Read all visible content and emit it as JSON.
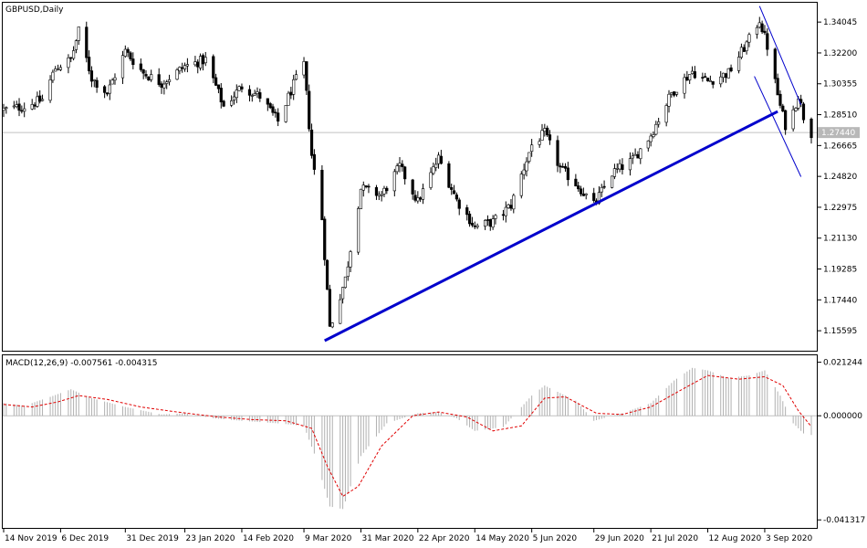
{
  "chart_data": [
    {
      "type": "candlestick",
      "title": "GBPUSD,Daily",
      "current_price_label": "1.27440",
      "current_price": 1.2744,
      "y_ticks": [
        "1.34045",
        "1.32200",
        "1.30355",
        "1.28510",
        "1.26665",
        "1.24820",
        "1.22975",
        "1.21130",
        "1.19285",
        "1.17440",
        "1.15595"
      ],
      "ylim": [
        1.144,
        1.352
      ],
      "x_labels": [
        "14 Nov 2019",
        "6 Dec 2019",
        "31 Dec 2019",
        "23 Jan 2020",
        "14 Feb 2020",
        "9 Mar 2020",
        "31 Mar 2020",
        "22 Apr 2020",
        "14 May 2020",
        "5 Jun 2020",
        "29 Jun 2020",
        "21 Jul 2020",
        "12 Aug 2020",
        "3 Sep 2020"
      ],
      "colors": {
        "candle": "#000000",
        "trend_line": "#0000cc",
        "channel": "#0000cc",
        "price_line": "#c0c0c0"
      },
      "trend_line": {
        "from": [
          "17 Mar 2020",
          1.15
        ],
        "to": [
          "8 Sep 2020",
          1.287
        ]
      },
      "channel_upper": {
        "from": [
          "1 Sep 2020",
          1.35
        ],
        "to": [
          "17 Sep 2020",
          1.291
        ]
      },
      "channel_lower": {
        "from": [
          "30 Aug 2020",
          1.308
        ],
        "to": [
          "17 Sep 2020",
          1.248
        ]
      },
      "series": [
        {
          "name": "GBPUSD",
          "close_path": [
            {
              "date": "14 Nov 2019",
              "close": 1.288
            },
            {
              "date": "22 Nov 2019",
              "close": 1.29
            },
            {
              "date": "29 Nov 2019",
              "close": 1.294
            },
            {
              "date": "4 Dec 2019",
              "close": 1.313
            },
            {
              "date": "10 Dec 2019",
              "close": 1.318
            },
            {
              "date": "13 Dec 2019",
              "close": 1.335
            },
            {
              "date": "18 Dec 2019",
              "close": 1.307
            },
            {
              "date": "24 Dec 2019",
              "close": 1.298
            },
            {
              "date": "31 Dec 2019",
              "close": 1.323
            },
            {
              "date": "7 Jan 2020",
              "close": 1.31
            },
            {
              "date": "14 Jan 2020",
              "close": 1.304
            },
            {
              "date": "23 Jan 2020",
              "close": 1.314
            },
            {
              "date": "31 Jan 2020",
              "close": 1.318
            },
            {
              "date": "7 Feb 2020",
              "close": 1.29
            },
            {
              "date": "14 Feb 2020",
              "close": 1.302
            },
            {
              "date": "21 Feb 2020",
              "close": 1.296
            },
            {
              "date": "28 Feb 2020",
              "close": 1.281
            },
            {
              "date": "5 Mar 2020",
              "close": 1.303
            },
            {
              "date": "9 Mar 2020",
              "close": 1.315
            },
            {
              "date": "12 Mar 2020",
              "close": 1.261
            },
            {
              "date": "16 Mar 2020",
              "close": 1.223
            },
            {
              "date": "19 Mar 2020",
              "close": 1.158
            },
            {
              "date": "20 Mar 2020",
              "close": 1.162
            },
            {
              "date": "25 Mar 2020",
              "close": 1.187
            },
            {
              "date": "31 Mar 2020",
              "close": 1.241
            },
            {
              "date": "8 Apr 2020",
              "close": 1.237
            },
            {
              "date": "15 Apr 2020",
              "close": 1.254
            },
            {
              "date": "22 Apr 2020",
              "close": 1.233
            },
            {
              "date": "30 Apr 2020",
              "close": 1.259
            },
            {
              "date": "7 May 2020",
              "close": 1.234
            },
            {
              "date": "14 May 2020",
              "close": 1.218
            },
            {
              "date": "21 May 2020",
              "close": 1.221
            },
            {
              "date": "28 May 2020",
              "close": 1.231
            },
            {
              "date": "5 Jun 2020",
              "close": 1.267
            },
            {
              "date": "10 Jun 2020",
              "close": 1.274
            },
            {
              "date": "16 Jun 2020",
              "close": 1.253
            },
            {
              "date": "22 Jun 2020",
              "close": 1.244
            },
            {
              "date": "29 Jun 2020",
              "close": 1.231
            },
            {
              "date": "6 Jul 2020",
              "close": 1.25
            },
            {
              "date": "14 Jul 2020",
              "close": 1.258
            },
            {
              "date": "21 Jul 2020",
              "close": 1.273
            },
            {
              "date": "29 Jul 2020",
              "close": 1.298
            },
            {
              "date": "6 Aug 2020",
              "close": 1.311
            },
            {
              "date": "12 Aug 2020",
              "close": 1.305
            },
            {
              "date": "20 Aug 2020",
              "close": 1.31
            },
            {
              "date": "28 Aug 2020",
              "close": 1.33
            },
            {
              "date": "1 Sep 2020",
              "close": 1.342
            },
            {
              "date": "4 Sep 2020",
              "close": 1.326
            },
            {
              "date": "9 Sep 2020",
              "close": 1.29
            },
            {
              "date": "11 Sep 2020",
              "close": 1.279
            },
            {
              "date": "14 Sep 2020",
              "close": 1.287
            },
            {
              "date": "16 Sep 2020",
              "close": 1.297
            },
            {
              "date": "18 Sep 2020",
              "close": 1.284
            },
            {
              "date": "21 Sep 2020",
              "close": 1.274
            }
          ]
        }
      ]
    },
    {
      "type": "histogram-line",
      "title": "MACD(12,26,9) -0.007561 -0.004315",
      "y_ticks": [
        "0.021244",
        "0.000000",
        "-0.041317"
      ],
      "ylim": [
        -0.0445,
        0.024
      ],
      "colors": {
        "histogram": "#b0b0b0",
        "signal": "#e00000",
        "zero_line": "#c0c0c0"
      },
      "series": [
        {
          "name": "MACD",
          "points": [
            {
              "date": "14 Nov 2019",
              "value": 0.005
            },
            {
              "date": "22 Nov 2019",
              "value": 0.004
            },
            {
              "date": "2 Dec 2019",
              "value": 0.0075
            },
            {
              "date": "10 Dec 2019",
              "value": 0.0105
            },
            {
              "date": "18 Dec 2019",
              "value": 0.007
            },
            {
              "date": "31 Dec 2019",
              "value": 0.0035
            },
            {
              "date": "14 Jan 2020",
              "value": 0.0005
            },
            {
              "date": "23 Jan 2020",
              "value": 0.001
            },
            {
              "date": "3 Feb 2020",
              "value": -0.001
            },
            {
              "date": "14 Feb 2020",
              "value": -0.002
            },
            {
              "date": "28 Feb 2020",
              "value": -0.003
            },
            {
              "date": "9 Mar 2020",
              "value": -0.004
            },
            {
              "date": "13 Mar 2020",
              "value": -0.015
            },
            {
              "date": "19 Mar 2020",
              "value": -0.036
            },
            {
              "date": "24 Mar 2020",
              "value": -0.037
            },
            {
              "date": "31 Mar 2020",
              "value": -0.016
            },
            {
              "date": "10 Apr 2020",
              "value": -0.003
            },
            {
              "date": "22 Apr 2020",
              "value": 0.001
            },
            {
              "date": "30 Apr 2020",
              "value": 0.0015
            },
            {
              "date": "7 May 2020",
              "value": -0.001
            },
            {
              "date": "14 May 2020",
              "value": -0.006
            },
            {
              "date": "25 May 2020",
              "value": -0.0045
            },
            {
              "date": "5 Jun 2020",
              "value": 0.008
            },
            {
              "date": "10 Jun 2020",
              "value": 0.012
            },
            {
              "date": "22 Jun 2020",
              "value": 0.006
            },
            {
              "date": "29 Jun 2020",
              "value": -0.002
            },
            {
              "date": "10 Jul 2020",
              "value": 0.001
            },
            {
              "date": "21 Jul 2020",
              "value": 0.005
            },
            {
              "date": "30 Jul 2020",
              "value": 0.014
            },
            {
              "date": "6 Aug 2020",
              "value": 0.019
            },
            {
              "date": "12 Aug 2020",
              "value": 0.018
            },
            {
              "date": "20 Aug 2020",
              "value": 0.015
            },
            {
              "date": "28 Aug 2020",
              "value": 0.016
            },
            {
              "date": "3 Sep 2020",
              "value": 0.018
            },
            {
              "date": "9 Sep 2020",
              "value": 0.008
            },
            {
              "date": "14 Sep 2020",
              "value": -0.003
            },
            {
              "date": "18 Sep 2020",
              "value": -0.007
            },
            {
              "date": "21 Sep 2020",
              "value": -0.0076
            }
          ]
        },
        {
          "name": "Signal",
          "points": [
            {
              "date": "14 Nov 2019",
              "value": 0.0045
            },
            {
              "date": "25 Nov 2019",
              "value": 0.0035
            },
            {
              "date": "5 Dec 2019",
              "value": 0.0055
            },
            {
              "date": "13 Dec 2019",
              "value": 0.008
            },
            {
              "date": "24 Dec 2019",
              "value": 0.0065
            },
            {
              "date": "6 Jan 2020",
              "value": 0.0035
            },
            {
              "date": "20 Jan 2020",
              "value": 0.0015
            },
            {
              "date": "5 Feb 2020",
              "value": -0.0005
            },
            {
              "date": "18 Feb 2020",
              "value": -0.0015
            },
            {
              "date": "2 Mar 2020",
              "value": -0.002
            },
            {
              "date": "12 Mar 2020",
              "value": -0.005
            },
            {
              "date": "18 Mar 2020",
              "value": -0.02
            },
            {
              "date": "24 Mar 2020",
              "value": -0.032
            },
            {
              "date": "30 Mar 2020",
              "value": -0.028
            },
            {
              "date": "8 Apr 2020",
              "value": -0.012
            },
            {
              "date": "20 Apr 2020",
              "value": 0.0
            },
            {
              "date": "30 Apr 2020",
              "value": 0.0015
            },
            {
              "date": "11 May 2020",
              "value": -0.0005
            },
            {
              "date": "21 May 2020",
              "value": -0.006
            },
            {
              "date": "1 Jun 2020",
              "value": -0.004
            },
            {
              "date": "10 Jun 2020",
              "value": 0.007
            },
            {
              "date": "18 Jun 2020",
              "value": 0.0075
            },
            {
              "date": "30 Jun 2020",
              "value": 0.001
            },
            {
              "date": "10 Jul 2020",
              "value": 0.0005
            },
            {
              "date": "21 Jul 2020",
              "value": 0.0035
            },
            {
              "date": "3 Aug 2020",
              "value": 0.011
            },
            {
              "date": "12 Aug 2020",
              "value": 0.016
            },
            {
              "date": "24 Aug 2020",
              "value": 0.0145
            },
            {
              "date": "3 Sep 2020",
              "value": 0.0155
            },
            {
              "date": "10 Sep 2020",
              "value": 0.012
            },
            {
              "date": "16 Sep 2020",
              "value": 0.002
            },
            {
              "date": "21 Sep 2020",
              "value": -0.0043
            }
          ]
        }
      ]
    }
  ]
}
